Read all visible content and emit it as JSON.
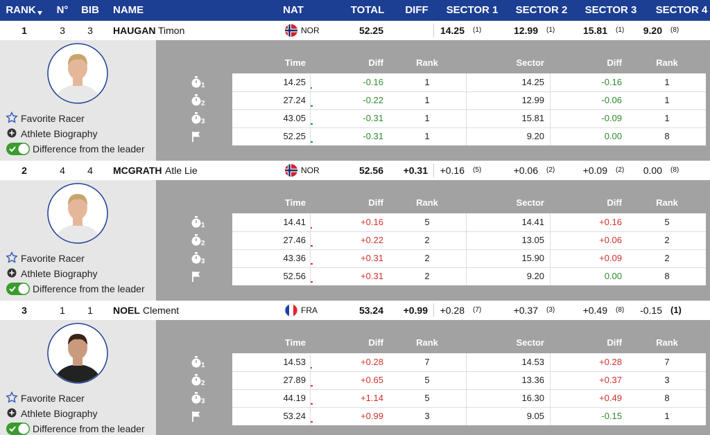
{
  "header": {
    "columns": [
      "RANK",
      "N°",
      "BIB",
      "NAME",
      "NAT",
      "TOTAL",
      "DIFF",
      "SECTOR 1",
      "SECTOR 2",
      "SECTOR 3",
      "SECTOR 4"
    ]
  },
  "detail_headers": [
    "Time",
    "Diff",
    "Rank",
    "Sector",
    "Diff",
    "Rank"
  ],
  "actions": [
    "Favorite Racer",
    "Athlete Biography",
    "Difference from the leader"
  ],
  "split_labels": [
    "1",
    "2",
    "3"
  ],
  "racers": [
    {
      "rank": "1",
      "no": "3",
      "bib": "3",
      "last": "HAUGAN",
      "first": "Timon",
      "nat": "NOR",
      "total": "52.25",
      "sectors": [
        {
          "time": "14.25",
          "rank": "(1)"
        },
        {
          "time": "12.99",
          "rank": "(1)"
        },
        {
          "time": "15.81",
          "rank": "(1)"
        },
        {
          "time": "9.20",
          "rank": "(8)"
        }
      ],
      "splits": [
        [
          "14.25",
          "-0.16",
          "1",
          "14.25",
          "-0.16",
          "1"
        ],
        [
          "27.24",
          "-0.22",
          "1",
          "12.99",
          "-0.06",
          "1"
        ],
        [
          "43.05",
          "-0.31",
          "1",
          "15.81",
          "-0.09",
          "1"
        ],
        [
          "52.25",
          "-0.31",
          "1",
          "9.20",
          "0.00",
          "8"
        ]
      ]
    },
    {
      "rank": "2",
      "no": "4",
      "bib": "4",
      "last": "MCGRATH",
      "first": "Atle Lie",
      "nat": "NOR",
      "total": "52.56",
      "diff": "+0.31",
      "sectors": [
        {
          "time": "+0.16",
          "rank": "(5)"
        },
        {
          "time": "+0.06",
          "rank": "(2)"
        },
        {
          "time": "+0.09",
          "rank": "(2)"
        },
        {
          "time": "0.00",
          "rank": "(8)"
        }
      ],
      "splits": [
        [
          "14.41",
          "+0.16",
          "5",
          "14.41",
          "+0.16",
          "5"
        ],
        [
          "27.46",
          "+0.22",
          "2",
          "13.05",
          "+0.06",
          "2"
        ],
        [
          "43.36",
          "+0.31",
          "2",
          "15.90",
          "+0.09",
          "2"
        ],
        [
          "52.56",
          "+0.31",
          "2",
          "9.20",
          "0.00",
          "8"
        ]
      ]
    },
    {
      "rank": "3",
      "no": "1",
      "bib": "1",
      "last": "NOEL",
      "first": "Clement",
      "nat": "FRA",
      "total": "53.24",
      "diff": "+0.99",
      "sectors": [
        {
          "time": "+0.28",
          "rank": "(7)"
        },
        {
          "time": "+0.37",
          "rank": "(3)"
        },
        {
          "time": "+0.49",
          "rank": "(8)"
        },
        {
          "time": "-0.15",
          "rank": "(1)"
        }
      ],
      "splits": [
        [
          "14.53",
          "+0.28",
          "7",
          "14.53",
          "+0.28",
          "7"
        ],
        [
          "27.89",
          "+0.65",
          "5",
          "13.36",
          "+0.37",
          "3"
        ],
        [
          "44.19",
          "+1.14",
          "5",
          "16.30",
          "+0.49",
          "8"
        ],
        [
          "53.24",
          "+0.99",
          "3",
          "9.05",
          "-0.15",
          "1"
        ]
      ]
    }
  ]
}
